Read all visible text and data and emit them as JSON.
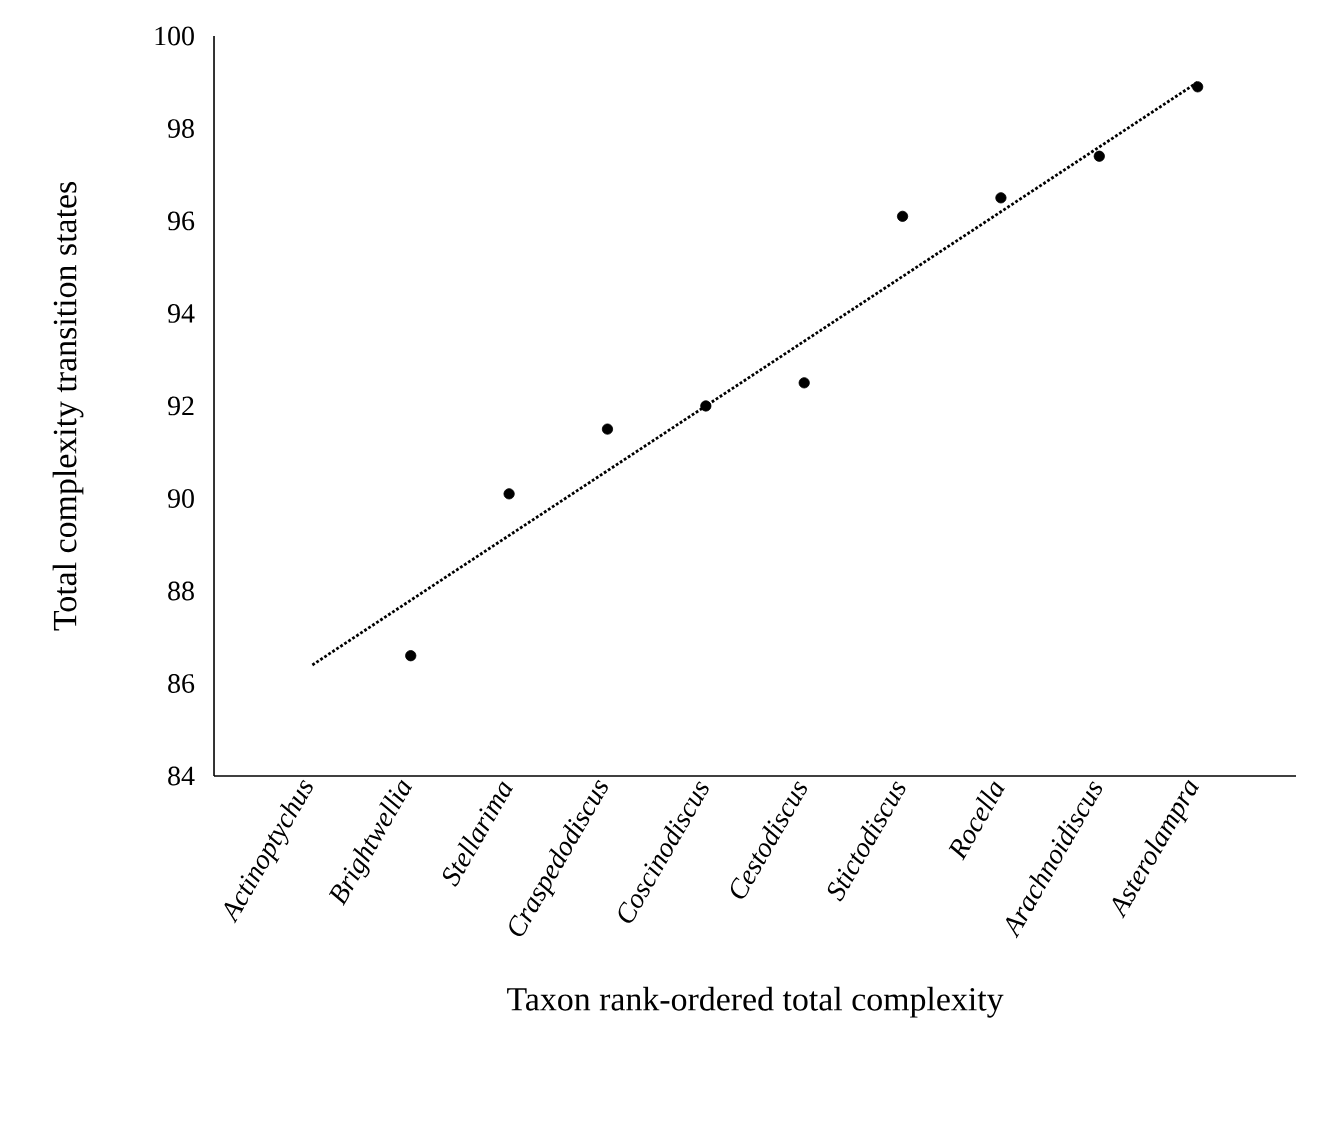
{
  "chart_data": {
    "type": "scatter",
    "xlabel": "Taxon rank-ordered total complexity",
    "ylabel": "Total complexity transition states",
    "categories": [
      "Actinoptychus",
      "Brightwellia",
      "Stellarima",
      "Craspedodiscus",
      "Coscinodiscus",
      "Cestodiscus",
      "Stictodiscus",
      "Rocella",
      "Arachnoidiscus",
      "Asterolampra"
    ],
    "series": [
      {
        "color": "#000000",
        "marker": "circle",
        "values": [
          null,
          86.6,
          90.1,
          91.5,
          92.0,
          92.5,
          96.1,
          96.5,
          97.4,
          98.9
        ]
      },
      {
        "type": "line",
        "color": "#000000",
        "marker": "none",
        "line_style": "dotted",
        "x": [
          "Actinoptychus",
          "Asterolampra"
        ],
        "values": [
          86.4,
          99.0
        ]
      }
    ],
    "ylim": [
      84,
      100
    ],
    "yticks": [
      84,
      86,
      88,
      90,
      92,
      94,
      96,
      98,
      100
    ],
    "grid": false
  }
}
